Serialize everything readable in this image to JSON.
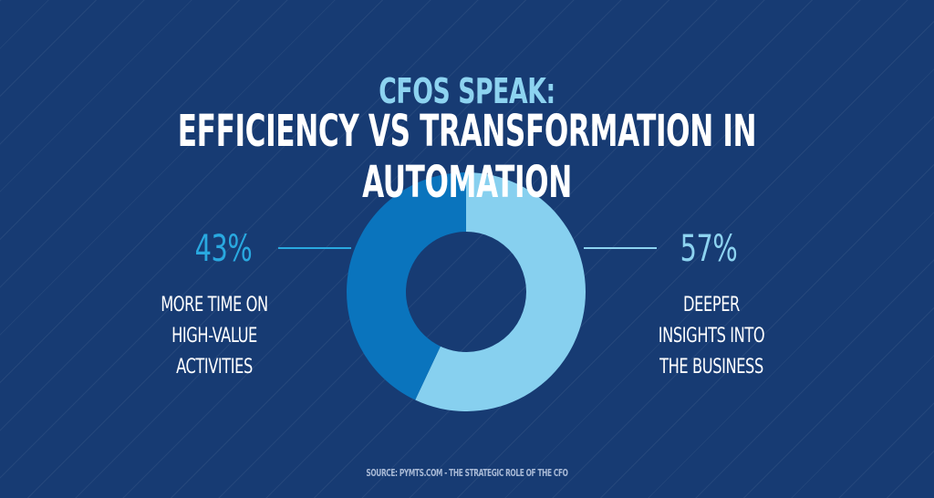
{
  "header": {
    "subtitle": "CFOs SPEAK:",
    "title": "EFFICIENCY VS TRANSFORMATION IN AUTOMATION"
  },
  "source": "SOURCE:  PYMTS.COM - THE STRATEGIC ROLE OF THE  CFO",
  "chart_data": {
    "type": "pie",
    "subtype": "donut",
    "categories": [
      "Deeper insights into the business",
      "More time on high-value activities"
    ],
    "values": [
      57,
      43
    ],
    "labels": [
      {
        "value_label": "57%",
        "text": [
          "DEEPER",
          "INSIGHTS INTO",
          "THE BUSINESS"
        ],
        "color": "#87d0ef",
        "side": "right"
      },
      {
        "value_label": "43%",
        "text": [
          "MORE TIME ON",
          "HIGH-VALUE",
          "ACTIVITIES"
        ],
        "color": "#0a74bd",
        "side": "left"
      }
    ]
  },
  "colors": {
    "background": "#173b73",
    "left_label": "#29a9e0",
    "right_label": "#8dd3f0"
  }
}
